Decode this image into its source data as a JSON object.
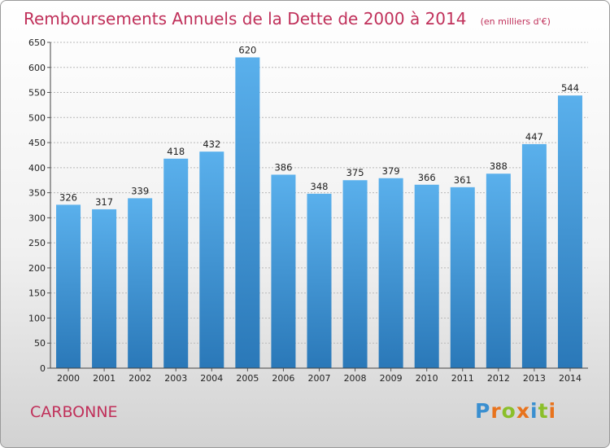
{
  "chart_data": {
    "type": "bar",
    "title": "Remboursements Annuels de la Dette de 2000 à 2014",
    "unit_note": "(en milliers d'€)",
    "categories": [
      "2000",
      "2001",
      "2002",
      "2003",
      "2004",
      "2005",
      "2006",
      "2007",
      "2008",
      "2009",
      "2010",
      "2011",
      "2012",
      "2013",
      "2014"
    ],
    "values": [
      326,
      317,
      339,
      418,
      432,
      620,
      386,
      348,
      375,
      379,
      366,
      361,
      388,
      447,
      544
    ],
    "ylim": [
      0,
      650
    ],
    "yticks": [
      "0",
      "50",
      "100",
      "150",
      "200",
      "250",
      "300",
      "350",
      "400",
      "450",
      "500",
      "550",
      "600",
      "650"
    ],
    "grid": true,
    "xlabel": "",
    "ylabel": ""
  },
  "commune": "CARBONNE",
  "logo": {
    "text": "Proxiti",
    "letter_colors": [
      "#3a8fd0",
      "#e8731d",
      "#8bbf2a",
      "#e8731d",
      "#3a8fd0",
      "#8bbf2a",
      "#e8731d"
    ]
  },
  "colors": {
    "bar_top": "#5ab0ec",
    "bar_bottom": "#2a78b8",
    "grid": "#b9b9b9",
    "title": "#c0305a"
  }
}
